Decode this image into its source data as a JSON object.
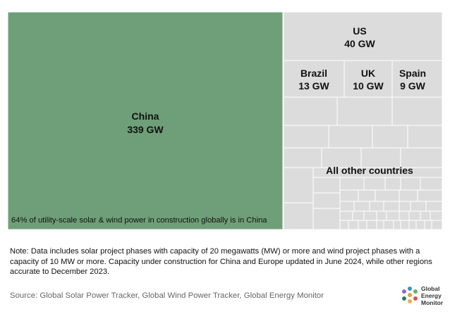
{
  "chart_data": {
    "type": "treemap",
    "unit": "GW",
    "nodes": [
      {
        "label": "China",
        "value": 339,
        "value_label": "339 GW",
        "color": "#6f9f78"
      },
      {
        "label": "US",
        "value": 40,
        "value_label": "40 GW",
        "color": "#dcdcdc"
      },
      {
        "label": "Brazil",
        "value": 13,
        "value_label": "13 GW",
        "color": "#dcdcdc"
      },
      {
        "label": "UK",
        "value": 10,
        "value_label": "10 GW",
        "color": "#dcdcdc"
      },
      {
        "label": "Spain",
        "value": 9,
        "value_label": "9 GW",
        "color": "#dcdcdc"
      },
      {
        "label": "All other countries",
        "value": null,
        "value_label": "",
        "color": "#dcdcdc"
      }
    ],
    "annotation": "64% of utility-scale solar & wind power in construction globally is in China"
  },
  "note": "Note: Data includes solar project phases with capacity of 20 megawatts (MW) or more and wind project phases with a capacity of 10 MW or more. Capacity under construction for China and Europe updated in June 2024, while other regions accurate to December 2023.",
  "source": "Source: Global Solar Power Tracker, Global Wind Power Tracker, Global Energy Monitor",
  "logo": {
    "line1": "Global",
    "line2": "Energy",
    "line3": "Monitor"
  }
}
